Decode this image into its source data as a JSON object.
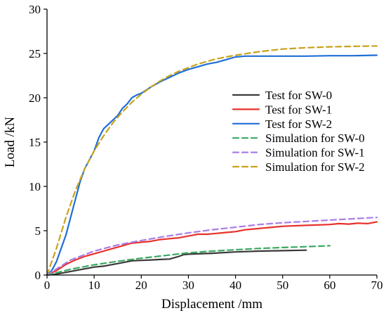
{
  "chart_data": {
    "type": "line",
    "xlabel": "Displacement /mm",
    "ylabel": "Load /kN",
    "xlim": [
      0,
      70
    ],
    "ylim": [
      0,
      30
    ],
    "xticks": [
      0,
      10,
      20,
      30,
      40,
      50,
      60,
      70
    ],
    "yticks": [
      0,
      5,
      10,
      15,
      20,
      25,
      30
    ],
    "grid": false,
    "legend_position": "right",
    "series": [
      {
        "name": "Test for SW-0",
        "color": "#3a3a3a",
        "style": "solid",
        "x": [
          0,
          2,
          4,
          6,
          8,
          10,
          12,
          14,
          16,
          18,
          20,
          22,
          24,
          26,
          28,
          29,
          30,
          35,
          40,
          45,
          50,
          55
        ],
        "y": [
          0,
          0.1,
          0.3,
          0.5,
          0.7,
          0.9,
          1.0,
          1.2,
          1.4,
          1.6,
          1.65,
          1.7,
          1.75,
          1.8,
          2.1,
          2.3,
          2.35,
          2.45,
          2.6,
          2.7,
          2.75,
          2.8
        ]
      },
      {
        "name": "Test for SW-1",
        "color": "#e8302a",
        "style": "solid",
        "x": [
          0,
          2,
          4,
          6,
          8,
          10,
          12,
          14,
          16,
          18,
          20,
          22,
          24,
          26,
          28,
          30,
          32,
          34,
          36,
          38,
          40,
          42,
          44,
          46,
          48,
          50,
          55,
          60,
          62,
          64,
          66,
          68,
          70
        ],
        "y": [
          0,
          0.5,
          1.2,
          1.7,
          2.1,
          2.4,
          2.7,
          3.0,
          3.3,
          3.6,
          3.7,
          3.8,
          4.0,
          4.1,
          4.2,
          4.4,
          4.6,
          4.6,
          4.7,
          4.8,
          4.9,
          5.1,
          5.2,
          5.3,
          5.4,
          5.5,
          5.6,
          5.7,
          5.8,
          5.75,
          5.85,
          5.8,
          6.0
        ]
      },
      {
        "name": "Test for SW-2",
        "color": "#1f6fd6",
        "style": "solid",
        "x": [
          0,
          1,
          2,
          3,
          4,
          5,
          6,
          7,
          8,
          9,
          10,
          11,
          12,
          13,
          14,
          15,
          16,
          17,
          18,
          19,
          20,
          22,
          24,
          26,
          28,
          30,
          32,
          34,
          36,
          38,
          40,
          42,
          45,
          50,
          55,
          60,
          65,
          70
        ],
        "y": [
          0,
          0.5,
          1.5,
          3.0,
          4.5,
          6.5,
          8.5,
          10.5,
          12.0,
          13.0,
          14.0,
          15.5,
          16.5,
          17.0,
          17.5,
          18.0,
          18.8,
          19.3,
          20.0,
          20.3,
          20.5,
          21.2,
          21.8,
          22.3,
          22.8,
          23.2,
          23.5,
          23.8,
          24.0,
          24.3,
          24.6,
          24.7,
          24.7,
          24.7,
          24.7,
          24.75,
          24.75,
          24.8
        ]
      },
      {
        "name": "Simulation for SW-0",
        "color": "#3aa860",
        "style": "dashed",
        "x": [
          0,
          5,
          10,
          15,
          20,
          25,
          30,
          35,
          40,
          45,
          50,
          55,
          60
        ],
        "y": [
          0,
          0.65,
          1.15,
          1.55,
          1.9,
          2.2,
          2.5,
          2.7,
          2.85,
          3.0,
          3.1,
          3.2,
          3.3
        ]
      },
      {
        "name": "Simulation for SW-1",
        "color": "#a97de8",
        "style": "dashed",
        "x": [
          0,
          5,
          10,
          15,
          20,
          25,
          30,
          35,
          40,
          45,
          50,
          55,
          60,
          65,
          70
        ],
        "y": [
          0,
          1.7,
          2.7,
          3.4,
          3.9,
          4.35,
          4.75,
          5.1,
          5.4,
          5.7,
          5.9,
          6.05,
          6.2,
          6.35,
          6.5
        ]
      },
      {
        "name": "Simulation for SW-2",
        "color": "#c9a21c",
        "style": "dashed",
        "x": [
          0,
          1,
          2,
          4,
          6,
          8,
          10,
          12,
          14,
          16,
          18,
          20,
          22,
          24,
          26,
          28,
          30,
          32,
          34,
          36,
          38,
          40,
          45,
          50,
          55,
          60,
          65,
          70
        ],
        "y": [
          0,
          1.5,
          3.0,
          6.5,
          9.5,
          12.0,
          14.0,
          15.7,
          17.2,
          18.4,
          19.5,
          20.4,
          21.2,
          21.9,
          22.5,
          23.0,
          23.4,
          23.8,
          24.1,
          24.4,
          24.6,
          24.8,
          25.2,
          25.5,
          25.65,
          25.75,
          25.8,
          25.85
        ]
      }
    ]
  }
}
